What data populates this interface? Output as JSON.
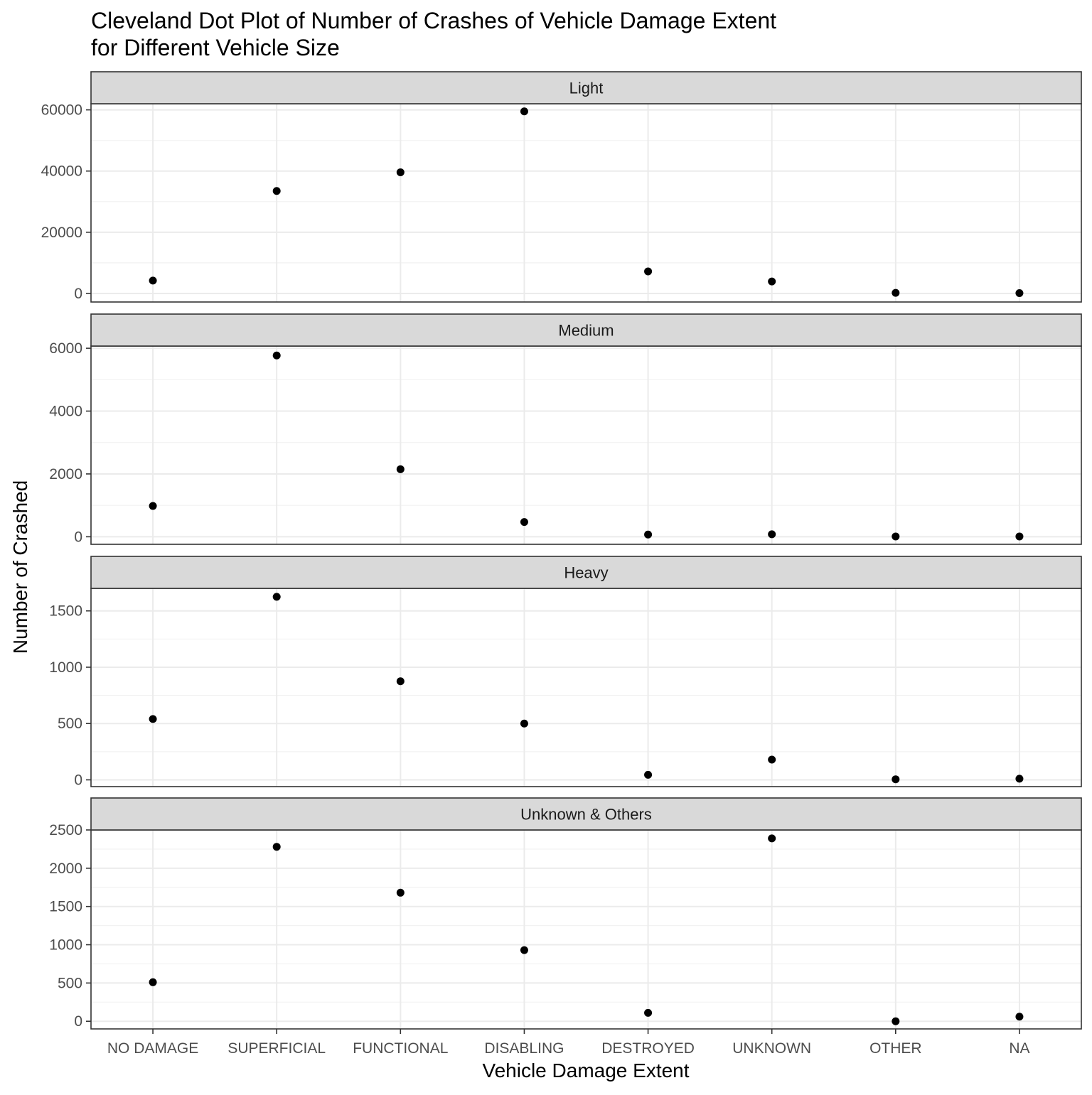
{
  "chart_data": {
    "type": "scatter",
    "title": [
      "Cleveland Dot Plot of Number of Crashes of Vehicle Damage Extent",
      "for Different Vehicle Size"
    ],
    "xlabel": "Vehicle Damage Extent",
    "ylabel": "Number of Crashed",
    "categories": [
      "NO DAMAGE",
      "SUPERFICIAL",
      "FUNCTIONAL",
      "DISABLING",
      "DESTROYED",
      "UNKNOWN",
      "OTHER",
      "NA"
    ],
    "grid": true,
    "legend": "none",
    "facets": [
      {
        "name": "Light",
        "ylim": [
          -2800,
          62000
        ],
        "yticks": [
          0,
          20000,
          40000,
          60000
        ],
        "values": [
          4200,
          33500,
          39600,
          59500,
          7200,
          3900,
          200,
          100
        ]
      },
      {
        "name": "Medium",
        "ylim": [
          -240,
          6070
        ],
        "yticks": [
          0,
          2000,
          4000,
          6000
        ],
        "values": [
          980,
          5770,
          2150,
          470,
          70,
          80,
          10,
          10
        ]
      },
      {
        "name": "Heavy",
        "ylim": [
          -60,
          1700
        ],
        "yticks": [
          0,
          500,
          1000,
          1500
        ],
        "values": [
          540,
          1625,
          875,
          500,
          45,
          180,
          5,
          10
        ]
      },
      {
        "name": "Unknown & Others",
        "ylim": [
          -100,
          2500
        ],
        "yticks": [
          0,
          500,
          1000,
          1500,
          2000,
          2500
        ],
        "values": [
          510,
          2280,
          1680,
          930,
          110,
          2390,
          0,
          60
        ]
      }
    ]
  }
}
